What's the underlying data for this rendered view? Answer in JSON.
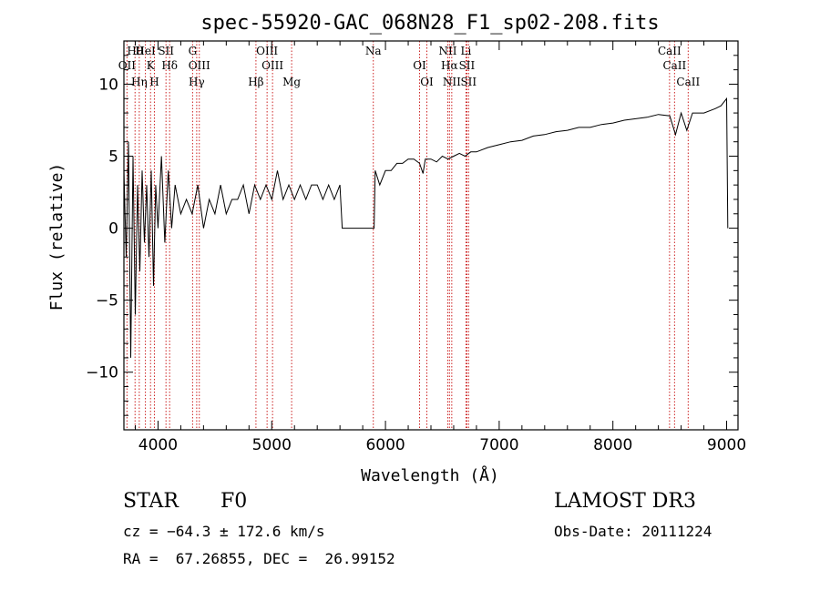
{
  "chart_data": {
    "type": "line",
    "title": "spec-55920-GAC_068N28_F1_sp02-208.fits",
    "xlabel": "Wavelength (Å)",
    "ylabel": "Flux (relative)",
    "xlim": [
      3700,
      9100
    ],
    "ylim": [
      -14,
      13
    ],
    "xticks": [
      4000,
      5000,
      6000,
      7000,
      8000,
      9000
    ],
    "yticks": [
      -10,
      -5,
      0,
      5,
      10
    ],
    "series": [
      {
        "name": "flux",
        "x": [
          3700,
          3720,
          3740,
          3760,
          3780,
          3800,
          3820,
          3840,
          3860,
          3880,
          3900,
          3920,
          3940,
          3960,
          3980,
          4000,
          4030,
          4060,
          4090,
          4120,
          4150,
          4200,
          4250,
          4300,
          4350,
          4400,
          4450,
          4500,
          4550,
          4600,
          4650,
          4700,
          4750,
          4800,
          4850,
          4900,
          4950,
          5000,
          5050,
          5100,
          5150,
          5200,
          5250,
          5300,
          5350,
          5400,
          5450,
          5500,
          5550,
          5600,
          5620,
          5700,
          5800,
          5900,
          5910,
          5950,
          6000,
          6050,
          6100,
          6150,
          6200,
          6250,
          6300,
          6330,
          6350,
          6400,
          6450,
          6500,
          6550,
          6600,
          6650,
          6700,
          6750,
          6800,
          6900,
          7000,
          7100,
          7200,
          7300,
          7400,
          7500,
          7600,
          7700,
          7800,
          7900,
          8000,
          8100,
          8200,
          8300,
          8400,
          8500,
          8550,
          8600,
          8650,
          8700,
          8800,
          8900,
          8950,
          9000,
          9010
        ],
        "y": [
          4,
          -2,
          6,
          -9,
          5,
          -6,
          3,
          -3,
          4,
          -1,
          3,
          -2,
          4,
          -4,
          3,
          0,
          5,
          -1,
          4,
          0,
          3,
          1,
          2,
          1,
          3,
          0,
          2,
          1,
          3,
          1,
          2,
          2,
          3,
          1,
          3,
          2,
          3,
          2,
          4,
          2,
          3,
          2,
          3,
          2,
          3,
          3,
          2,
          3,
          2,
          3,
          0,
          0,
          0,
          0,
          4,
          3,
          4,
          4,
          4.5,
          4.5,
          4.8,
          4.8,
          4.5,
          3.8,
          4.8,
          4.8,
          4.6,
          5,
          4.8,
          5,
          5.2,
          5,
          5.3,
          5.3,
          5.6,
          5.8,
          6,
          6.1,
          6.4,
          6.5,
          6.7,
          6.8,
          7,
          7,
          7.2,
          7.3,
          7.5,
          7.6,
          7.7,
          7.9,
          7.8,
          6.5,
          8,
          6.8,
          8,
          8,
          8.3,
          8.5,
          9,
          0
        ]
      }
    ],
    "lines": [
      {
        "name": "Hθ",
        "wl": 3798
      },
      {
        "name": "OII",
        "wl": 3727
      },
      {
        "name": "Hη",
        "wl": 3835
      },
      {
        "name": "HeI",
        "wl": 3889
      },
      {
        "name": "K",
        "wl": 3934
      },
      {
        "name": "H",
        "wl": 3968
      },
      {
        "name": "SII",
        "wl": 4070
      },
      {
        "name": "Hδ",
        "wl": 4102
      },
      {
        "name": "Hγ",
        "wl": 4340
      },
      {
        "name": "G",
        "wl": 4304
      },
      {
        "name": "OIII",
        "wl": 4363
      },
      {
        "name": "Hβ",
        "wl": 4861
      },
      {
        "name": "OIII",
        "wl": 4959
      },
      {
        "name": "OIII",
        "wl": 5007
      },
      {
        "name": "Mg",
        "wl": 5175
      },
      {
        "name": "Na",
        "wl": 5893
      },
      {
        "name": "OI",
        "wl": 6300
      },
      {
        "name": "OI",
        "wl": 6364
      },
      {
        "name": "NII",
        "wl": 6548
      },
      {
        "name": "Hα",
        "wl": 6563
      },
      {
        "name": "NII",
        "wl": 6583
      },
      {
        "name": "Li",
        "wl": 6708
      },
      {
        "name": "SII",
        "wl": 6716
      },
      {
        "name": "SII",
        "wl": 6731
      },
      {
        "name": "CaII",
        "wl": 8498
      },
      {
        "name": "CaII",
        "wl": 8542
      },
      {
        "name": "CaII",
        "wl": 8662
      }
    ]
  },
  "info": {
    "object_class": "STAR",
    "subclass": "F0",
    "survey": "LAMOST DR3",
    "cz": "cz = −64.3 ± 172.6 km/s",
    "obs_date": "Obs-Date: 20111224",
    "coords": "RA =  67.26855, DEC =  26.99152"
  }
}
